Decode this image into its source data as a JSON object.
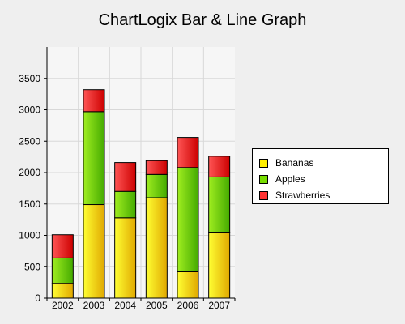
{
  "chart_data": {
    "type": "bar",
    "stacked": true,
    "title": "ChartLogix Bar & Line Graph",
    "xlabel": "",
    "ylabel": "",
    "categories": [
      "2002",
      "2003",
      "2004",
      "2005",
      "2006",
      "2007"
    ],
    "series": [
      {
        "name": "Bananas",
        "color": "#f0d000",
        "values": [
          230,
          1490,
          1280,
          1600,
          420,
          1040
        ]
      },
      {
        "name": "Apples",
        "color": "#66cc00",
        "values": [
          410,
          1480,
          420,
          370,
          1660,
          890
        ]
      },
      {
        "name": "Strawberries",
        "color": "#ee2222",
        "values": [
          370,
          350,
          460,
          220,
          480,
          330
        ]
      }
    ],
    "ylim": [
      0,
      4000
    ],
    "yticks": [
      0,
      500,
      1000,
      1500,
      2000,
      2500,
      3000,
      3500
    ],
    "grid": true,
    "legend_position": "right"
  }
}
